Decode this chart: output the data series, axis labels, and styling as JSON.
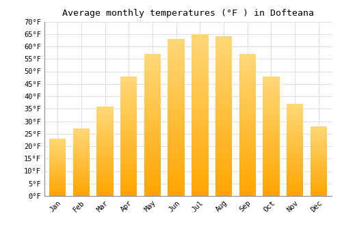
{
  "title": "Average monthly temperatures (°F ) in Dofteana",
  "months": [
    "Jan",
    "Feb",
    "Mar",
    "Apr",
    "May",
    "Jun",
    "Jul",
    "Aug",
    "Sep",
    "Oct",
    "Nov",
    "Dec"
  ],
  "values": [
    23,
    27,
    36,
    48,
    57,
    63,
    65,
    64,
    57,
    48,
    37,
    28
  ],
  "ylim": [
    0,
    70
  ],
  "yticks": [
    0,
    5,
    10,
    15,
    20,
    25,
    30,
    35,
    40,
    45,
    50,
    55,
    60,
    65,
    70
  ],
  "bar_color_bottom": "#FFA500",
  "bar_color_top": "#FFD878",
  "background_color": "#ffffff",
  "grid_color": "#dddddd",
  "title_fontsize": 9.5,
  "tick_fontsize": 7.5,
  "font_family": "monospace"
}
